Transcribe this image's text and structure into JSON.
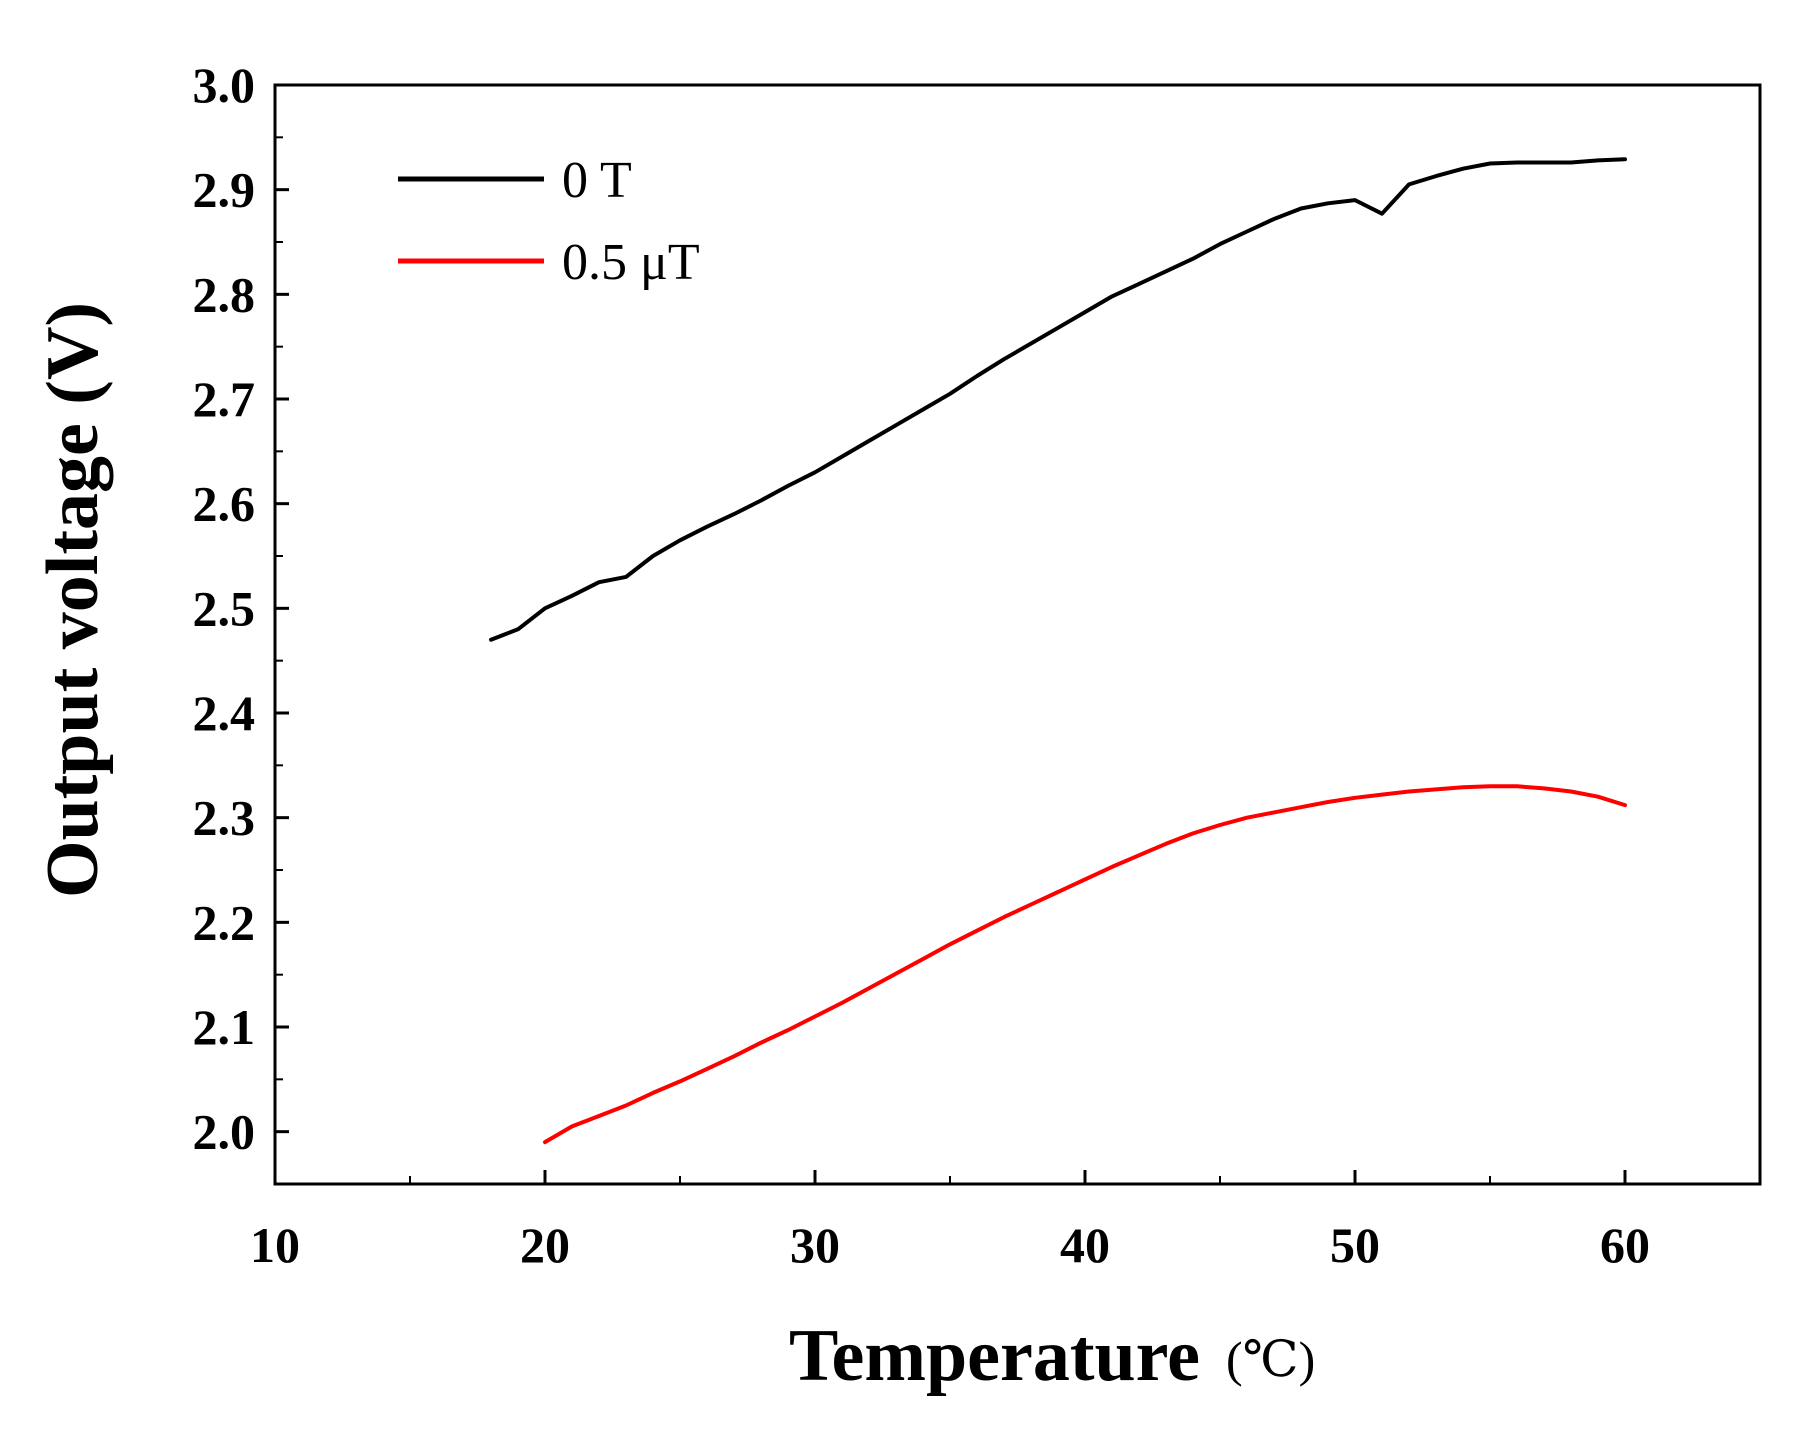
{
  "chart_data": {
    "type": "line",
    "title": "",
    "xlabel": "Temperature",
    "xunit": "(℃)",
    "ylabel": "Output voltage (V)",
    "xlim": [
      10,
      65
    ],
    "ylim": [
      1.95,
      3.0
    ],
    "xticks": [
      10,
      20,
      30,
      40,
      50,
      60
    ],
    "yticks": [
      2.0,
      2.1,
      2.2,
      2.3,
      2.4,
      2.5,
      2.6,
      2.7,
      2.8,
      2.9,
      3.0
    ],
    "legend_position": "top-left",
    "grid": false,
    "series": [
      {
        "name": "0 T",
        "color": "#000000",
        "x": [
          18,
          19,
          20,
          21,
          22,
          23,
          24,
          25,
          26,
          27,
          28,
          29,
          30,
          31,
          32,
          33,
          34,
          35,
          36,
          37,
          38,
          39,
          40,
          41,
          42,
          43,
          44,
          45,
          46,
          47,
          48,
          49,
          50,
          51,
          52,
          53,
          54,
          55,
          56,
          57,
          58,
          59,
          60
        ],
        "values": [
          2.47,
          2.48,
          2.5,
          2.512,
          2.525,
          2.53,
          2.55,
          2.565,
          2.578,
          2.59,
          2.603,
          2.617,
          2.63,
          2.645,
          2.66,
          2.675,
          2.69,
          2.705,
          2.722,
          2.738,
          2.753,
          2.768,
          2.783,
          2.798,
          2.81,
          2.822,
          2.834,
          2.848,
          2.86,
          2.872,
          2.882,
          2.887,
          2.89,
          2.877,
          2.905,
          2.913,
          2.92,
          2.925,
          2.926,
          2.926,
          2.926,
          2.928,
          2.929
        ]
      },
      {
        "name": "0.5 μT",
        "color": "#ff0000",
        "x": [
          20,
          21,
          22,
          23,
          24,
          25,
          26,
          27,
          28,
          29,
          30,
          31,
          32,
          33,
          34,
          35,
          36,
          37,
          38,
          39,
          40,
          41,
          42,
          43,
          44,
          45,
          46,
          47,
          48,
          49,
          50,
          51,
          52,
          53,
          54,
          55,
          56,
          57,
          58,
          59,
          60
        ],
        "values": [
          1.99,
          2.005,
          2.015,
          2.025,
          2.037,
          2.048,
          2.06,
          2.072,
          2.085,
          2.097,
          2.11,
          2.123,
          2.137,
          2.151,
          2.165,
          2.179,
          2.192,
          2.205,
          2.217,
          2.229,
          2.241,
          2.253,
          2.264,
          2.275,
          2.285,
          2.293,
          2.3,
          2.305,
          2.31,
          2.315,
          2.319,
          2.322,
          2.325,
          2.327,
          2.329,
          2.33,
          2.33,
          2.328,
          2.325,
          2.32,
          2.312
        ]
      }
    ]
  }
}
